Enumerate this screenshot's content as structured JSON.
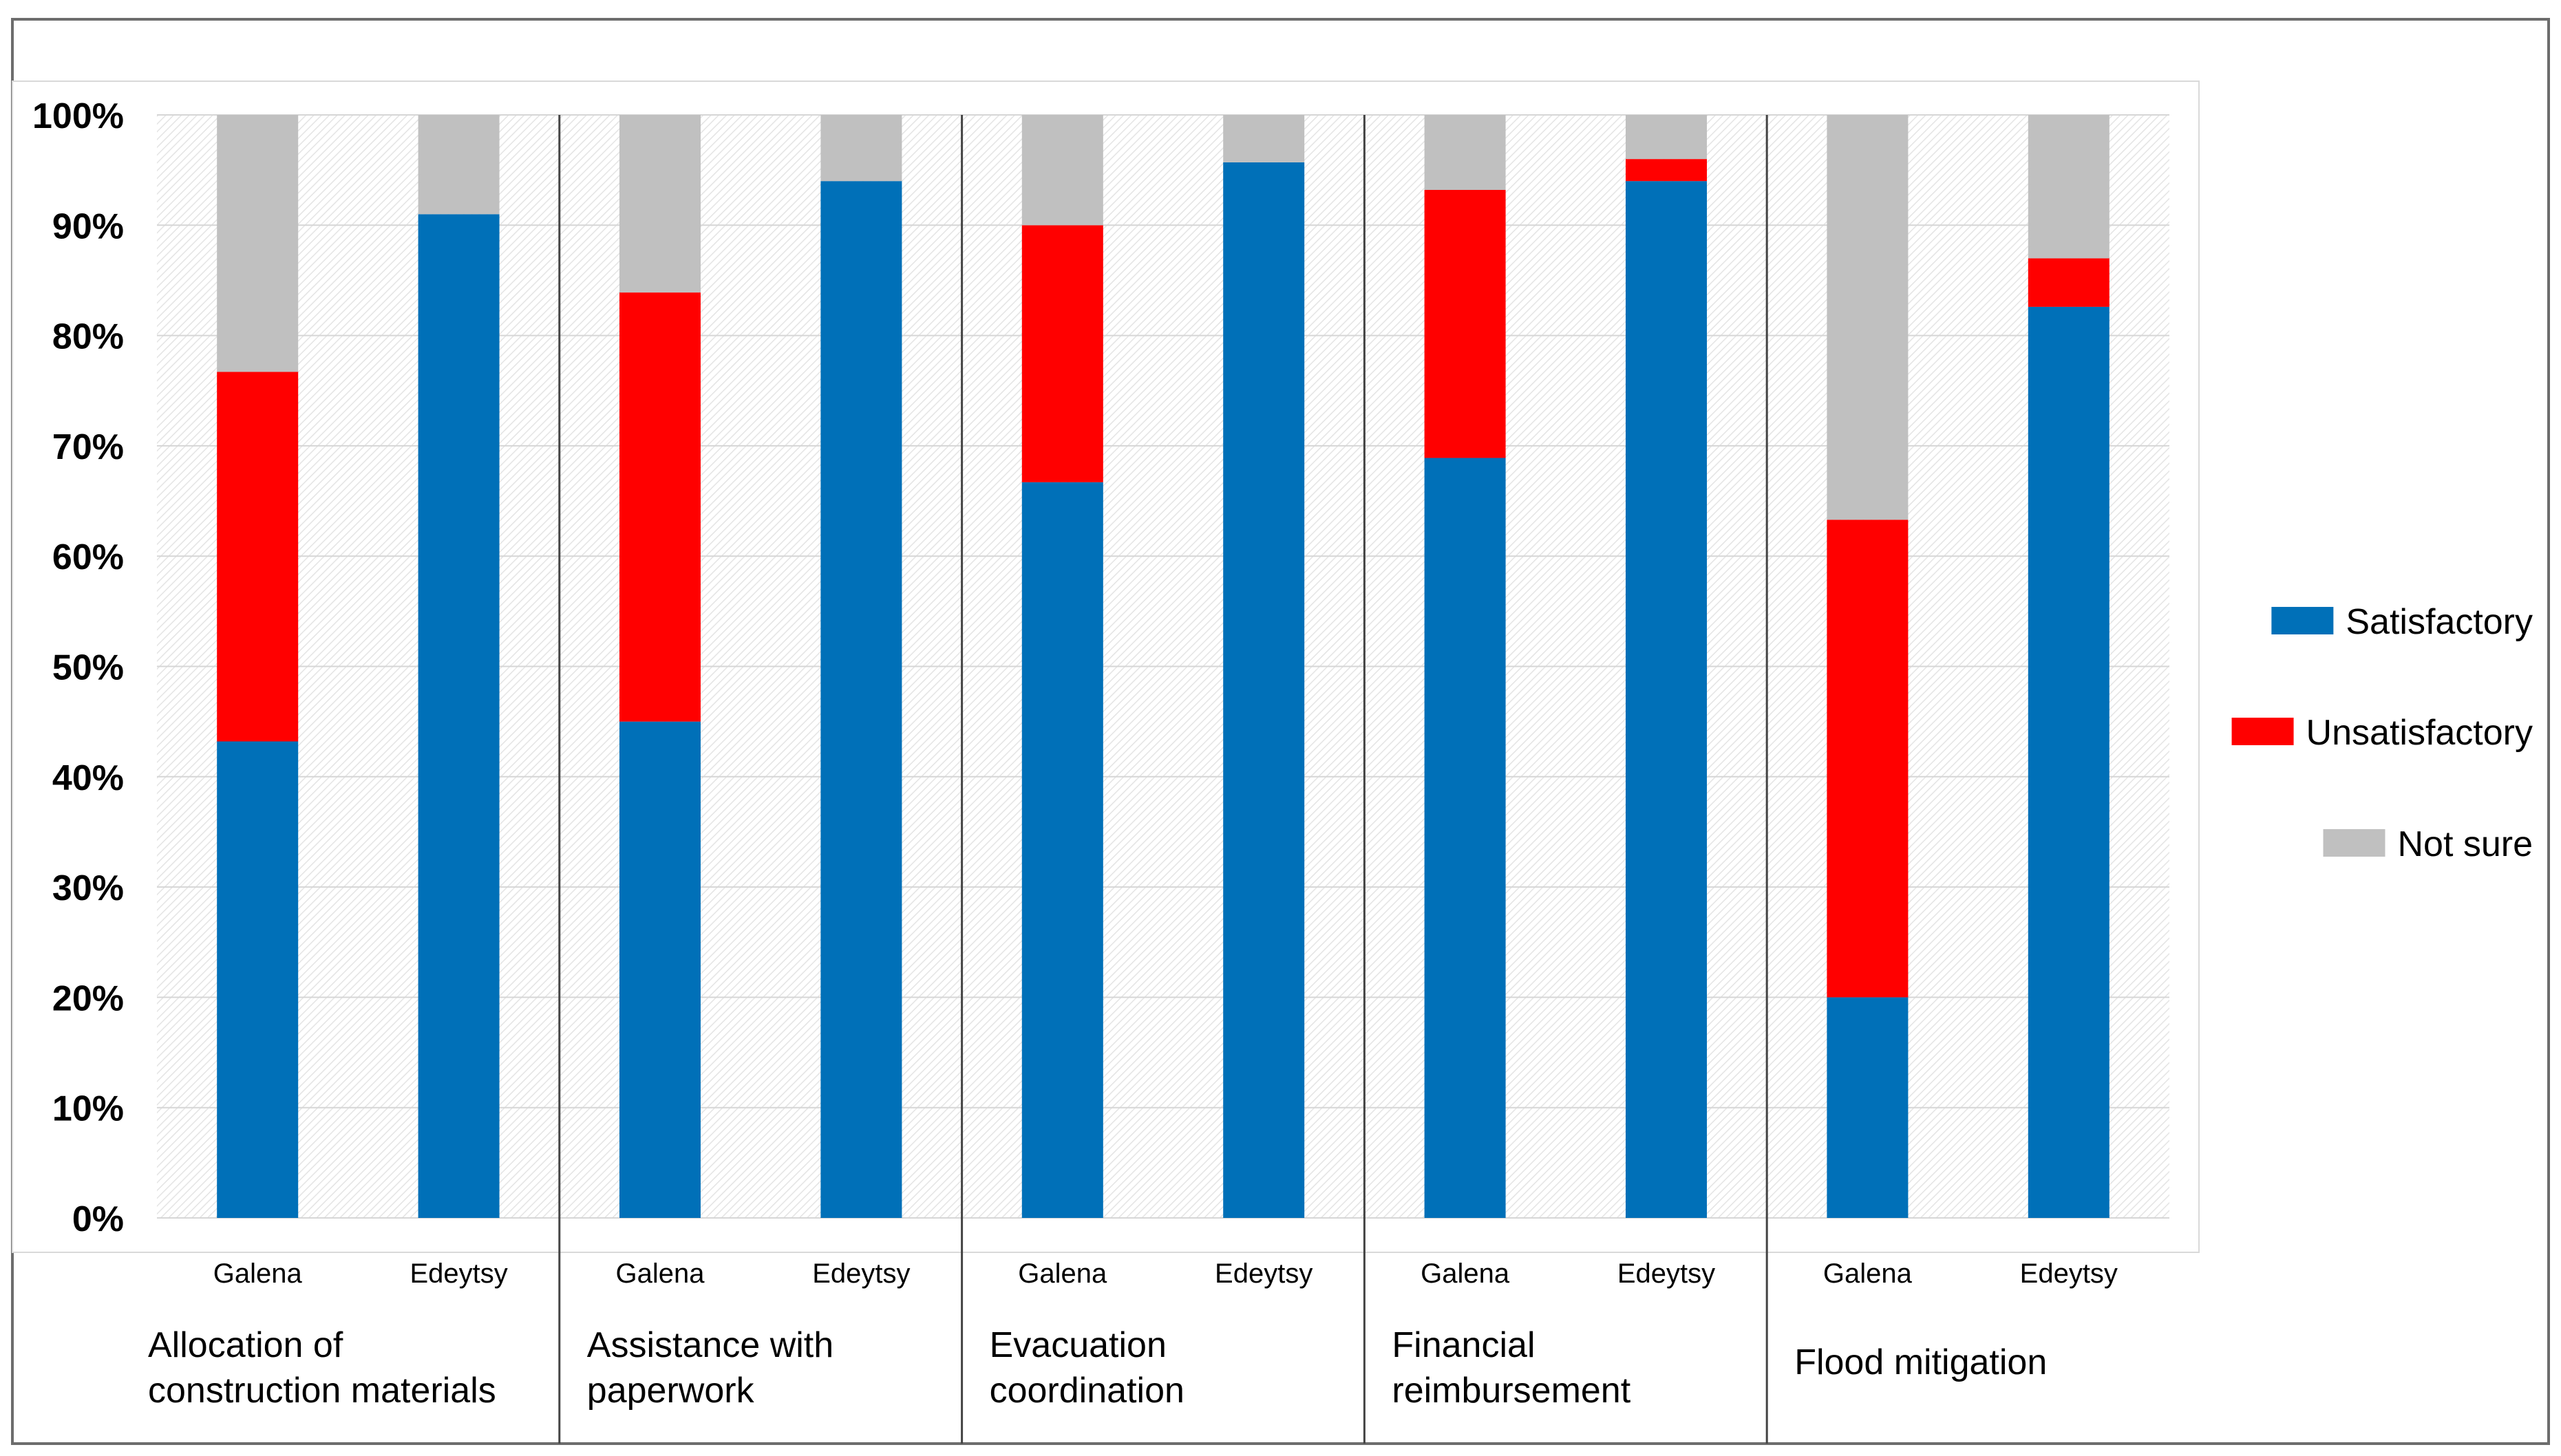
{
  "chart_data": {
    "type": "bar",
    "stacked": true,
    "y_tick_labels": [
      "0%",
      "10%",
      "20%",
      "30%",
      "40%",
      "50%",
      "60%",
      "70%",
      "80%",
      "90%",
      "100%"
    ],
    "ylim": [
      0,
      100
    ],
    "y_unit": "%",
    "groups": [
      {
        "label_lines": [
          "Allocation of",
          "construction materials"
        ],
        "categories": [
          "Galena",
          "Edeytsy"
        ]
      },
      {
        "label_lines": [
          "Assistance with",
          "paperwork"
        ],
        "categories": [
          "Galena",
          "Edeytsy"
        ]
      },
      {
        "label_lines": [
          "Evacuation",
          "coordination"
        ],
        "categories": [
          "Galena",
          "Edeytsy"
        ]
      },
      {
        "label_lines": [
          "Financial",
          "reimbursement"
        ],
        "categories": [
          "Galena",
          "Edeytsy"
        ]
      },
      {
        "label_lines": [
          "Flood mitigation"
        ],
        "categories": [
          "Galena",
          "Edeytsy"
        ]
      }
    ],
    "series": [
      {
        "name": "Satisfactory",
        "color": "#0070b8",
        "values": [
          43.2,
          91,
          45,
          94,
          66.7,
          95.7,
          68.9,
          94,
          20,
          82.6
        ]
      },
      {
        "name": "Unsatisfactory",
        "color": "#ff0000",
        "values": [
          33.5,
          0,
          38.9,
          0,
          23.3,
          0,
          24.3,
          2,
          43.3,
          4.4
        ]
      },
      {
        "name": "Not sure",
        "color": "#c0c0c0",
        "values": [
          23.3,
          9,
          16.1,
          6,
          10,
          4.3,
          6.8,
          4,
          36.7,
          13
        ]
      }
    ],
    "legend_position": "right",
    "grid": true
  }
}
